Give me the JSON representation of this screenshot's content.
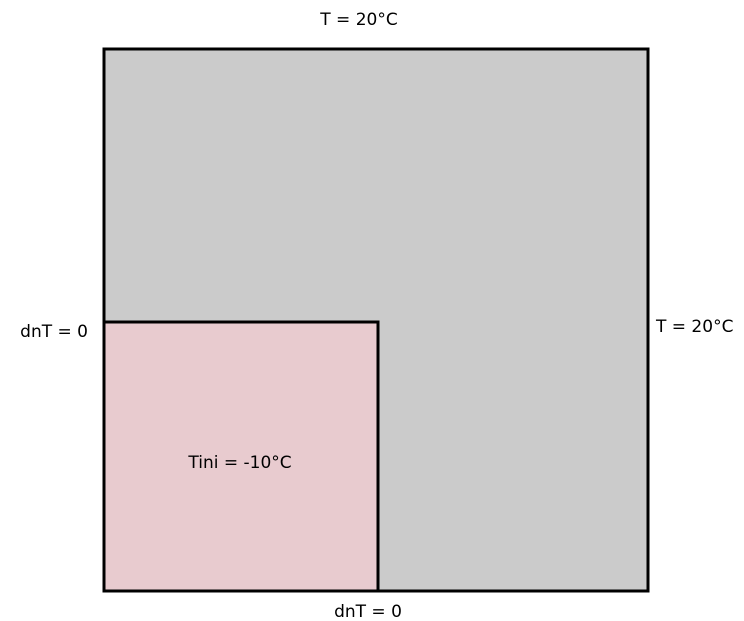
{
  "labels": {
    "top": "T = 20°C",
    "right": "T = 20°C",
    "left": "dnT = 0",
    "bottom": "dnT = 0",
    "inner": "Tini = -10°C"
  }
}
